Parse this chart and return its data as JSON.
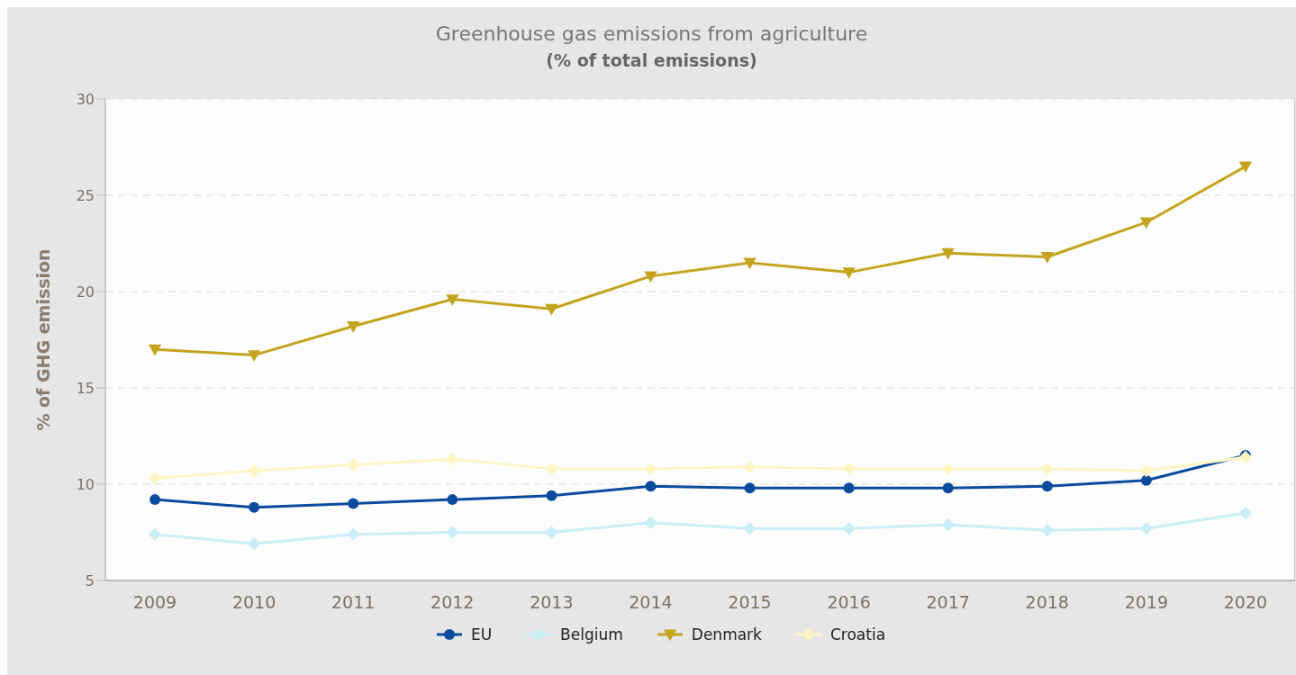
{
  "chart_data": {
    "type": "line",
    "title": "Greenhouse gas emissions from agriculture",
    "subtitle": "(% of total emissions)",
    "ylabel": "% of GHG emission",
    "categories": [
      "2009",
      "2010",
      "2011",
      "2012",
      "2013",
      "2014",
      "2015",
      "2016",
      "2017",
      "2018",
      "2019",
      "2020"
    ],
    "series": [
      {
        "name": "EU",
        "color": "#0b4b9d",
        "marker": "circle",
        "values": [
          9.2,
          8.8,
          9.0,
          9.2,
          9.4,
          9.9,
          9.8,
          9.8,
          9.8,
          9.9,
          10.2,
          11.5
        ]
      },
      {
        "name": "Belgium",
        "color": "#c9eef7",
        "marker": "diamond",
        "values": [
          7.4,
          6.9,
          7.4,
          7.5,
          7.5,
          8.0,
          7.7,
          7.7,
          7.9,
          7.6,
          7.7,
          8.5
        ]
      },
      {
        "name": "Denmark",
        "color": "#c4a41e",
        "marker": "triangle",
        "values": [
          17.0,
          16.7,
          18.2,
          19.6,
          19.1,
          20.8,
          21.5,
          21.0,
          22.0,
          21.8,
          23.6,
          26.5
        ]
      },
      {
        "name": "Croatia",
        "color": "#fdf5c4",
        "marker": "diamond",
        "values": [
          10.3,
          10.7,
          11.0,
          11.3,
          10.8,
          10.8,
          10.9,
          10.8,
          10.8,
          10.8,
          10.7,
          11.4
        ]
      }
    ],
    "ylim": [
      5,
      30
    ],
    "yticks": [
      5,
      10,
      15,
      20,
      25,
      30
    ],
    "grid": "y",
    "legend": "bottom",
    "line_style": "solid"
  }
}
